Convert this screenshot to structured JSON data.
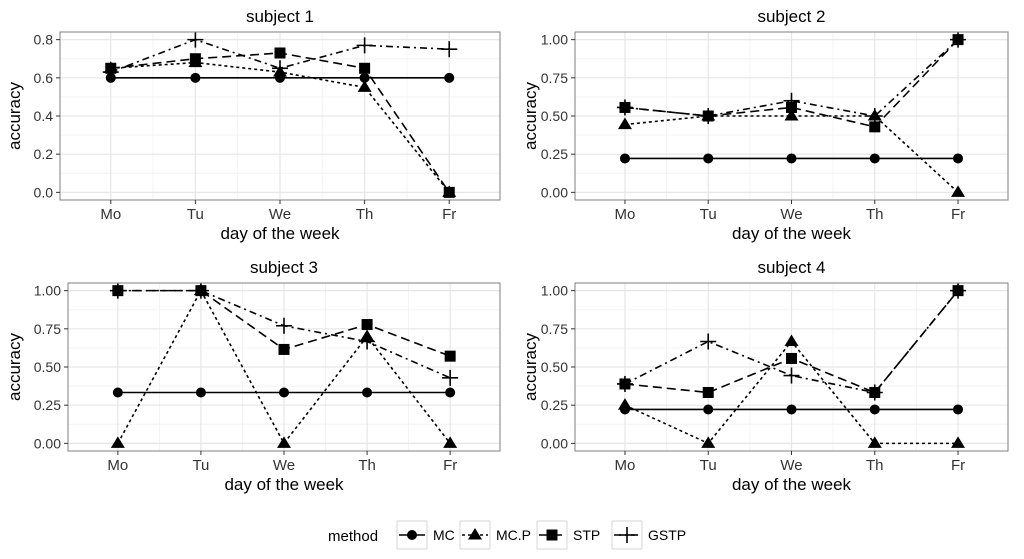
{
  "chart_data": {
    "type": "line",
    "legend": {
      "title": "method",
      "position": "bottom",
      "entries": [
        "MC",
        "MC.P",
        "STP",
        "GSTP"
      ]
    },
    "panels": [
      {
        "title": "subject 1",
        "xlabel": "day of the week",
        "ylabel": "accuracy",
        "categories": [
          "Mo",
          "Tu",
          "We",
          "Th",
          "Fr"
        ],
        "ylim": [
          -0.04,
          0.84
        ],
        "yticks": [
          0.0,
          0.2,
          0.4,
          0.6,
          0.8
        ],
        "ytick_labels": [
          "0.0",
          "0.2",
          "0.4",
          "0.6",
          "0.8"
        ],
        "series": [
          {
            "name": "MC",
            "values": [
              0.6,
              0.6,
              0.6,
              0.6,
              0.6
            ]
          },
          {
            "name": "MC.P",
            "values": [
              0.65,
              0.68,
              0.63,
              0.55,
              0.0
            ]
          },
          {
            "name": "STP",
            "values": [
              0.65,
              0.7,
              0.73,
              0.65,
              0.0
            ]
          },
          {
            "name": "GSTP",
            "values": [
              0.63,
              0.8,
              0.65,
              0.77,
              0.75
            ]
          }
        ]
      },
      {
        "title": "subject 2",
        "xlabel": "day of the week",
        "ylabel": "accuracy",
        "categories": [
          "Mo",
          "Tu",
          "We",
          "Th",
          "Fr"
        ],
        "ylim": [
          -0.05,
          1.05
        ],
        "yticks": [
          0.0,
          0.25,
          0.5,
          0.75,
          1.0
        ],
        "ytick_labels": [
          "0.00",
          "0.25",
          "0.50",
          "0.75",
          "1.00"
        ],
        "series": [
          {
            "name": "MC",
            "values": [
              0.222,
              0.222,
              0.222,
              0.222,
              0.222
            ]
          },
          {
            "name": "MC.P",
            "values": [
              0.444,
              0.5,
              0.5,
              0.5,
              0.0
            ]
          },
          {
            "name": "STP",
            "values": [
              0.556,
              0.5,
              0.556,
              0.429,
              1.0
            ]
          },
          {
            "name": "GSTP",
            "values": [
              0.556,
              0.5,
              0.6,
              0.5,
              1.0
            ]
          }
        ]
      },
      {
        "title": "subject 3",
        "xlabel": "day of the week",
        "ylabel": "accuracy",
        "categories": [
          "Mo",
          "Tu",
          "We",
          "Th",
          "Fr"
        ],
        "ylim": [
          -0.05,
          1.05
        ],
        "yticks": [
          0.0,
          0.25,
          0.5,
          0.75,
          1.0
        ],
        "ytick_labels": [
          "0.00",
          "0.25",
          "0.50",
          "0.75",
          "1.00"
        ],
        "series": [
          {
            "name": "MC",
            "values": [
              0.333,
              0.333,
              0.333,
              0.333,
              0.333
            ]
          },
          {
            "name": "MC.P",
            "values": [
              0.0,
              1.0,
              0.0,
              0.7,
              0.0
            ]
          },
          {
            "name": "STP",
            "values": [
              1.0,
              1.0,
              0.615,
              0.778,
              0.571
            ]
          },
          {
            "name": "GSTP",
            "values": [
              1.0,
              1.0,
              0.77,
              0.667,
              0.429
            ]
          }
        ]
      },
      {
        "title": "subject 4",
        "xlabel": "day of the week",
        "ylabel": "accuracy",
        "categories": [
          "Mo",
          "Tu",
          "We",
          "Th",
          "Fr"
        ],
        "ylim": [
          -0.05,
          1.05
        ],
        "yticks": [
          0.0,
          0.25,
          0.5,
          0.75,
          1.0
        ],
        "ytick_labels": [
          "0.00",
          "0.25",
          "0.50",
          "0.75",
          "1.00"
        ],
        "series": [
          {
            "name": "MC",
            "values": [
              0.222,
              0.222,
              0.222,
              0.222,
              0.222
            ]
          },
          {
            "name": "MC.P",
            "values": [
              0.25,
              0.0,
              0.667,
              0.0,
              0.0
            ]
          },
          {
            "name": "STP",
            "values": [
              0.389,
              0.333,
              0.556,
              0.333,
              1.0
            ]
          },
          {
            "name": "GSTP",
            "values": [
              0.389,
              0.667,
              0.444,
              0.333,
              1.0
            ]
          }
        ]
      }
    ]
  },
  "colors": {
    "line": "#000000",
    "panel_border": "#7f7f7f",
    "grid_major": "#e6e6e6",
    "grid_minor": "#f3f3f3"
  }
}
